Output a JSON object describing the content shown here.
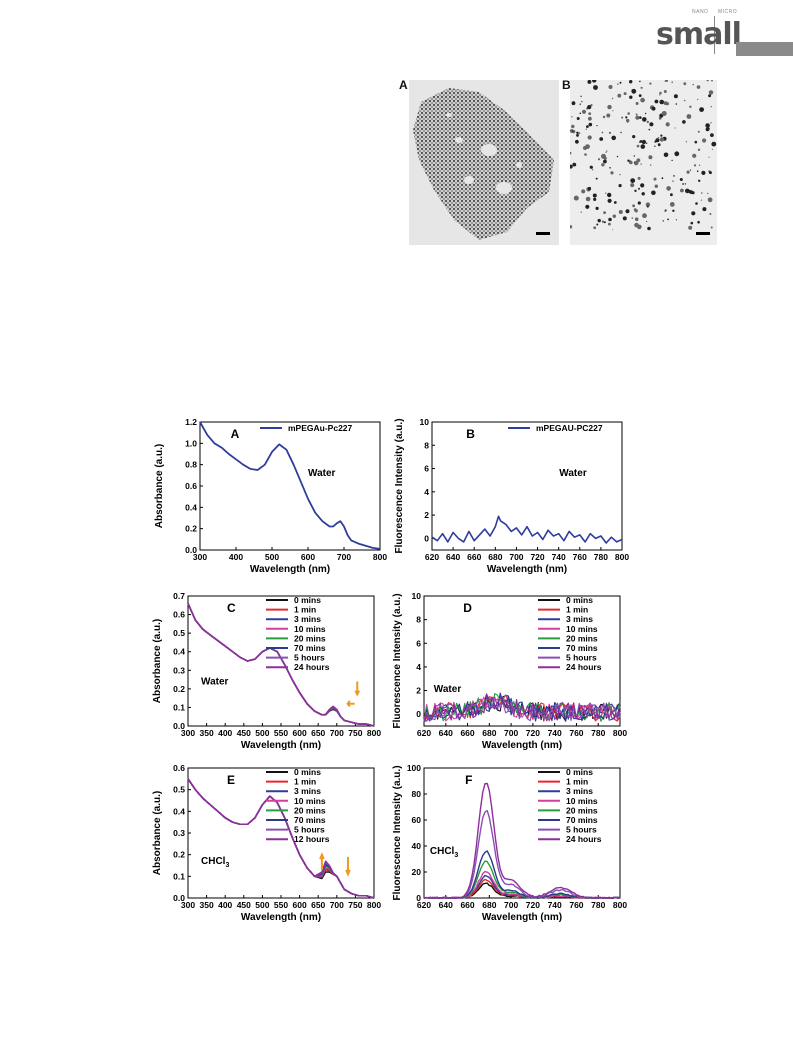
{
  "header": {
    "journal_logo": "small",
    "logo_small_left": "NANO",
    "logo_small_right": "MICRO"
  },
  "tem_figure": {
    "panels": [
      {
        "label": "A"
      },
      {
        "label": "B"
      }
    ]
  },
  "colors": {
    "black": "#111111",
    "red": "#e8262b",
    "blue": "#2f3d9c",
    "magenta": "#d53e9e",
    "green": "#2a9d3c",
    "navy": "#2a3a8c",
    "violet": "#8a4fb6",
    "purple": "#8e2f9a",
    "orange": "#f29a1d"
  },
  "chart_data": [
    {
      "panel": "A",
      "type": "line",
      "xlabel": "Wavelength (nm)",
      "ylabel": "Absorbance (a.u.)",
      "xlim": [
        300,
        800
      ],
      "ylim": [
        0,
        1.2
      ],
      "xticks": [
        "300",
        "400",
        "500",
        "600",
        "700",
        "800"
      ],
      "yticks": [
        "0.0",
        "0.2",
        "0.4",
        "0.6",
        "0.8",
        "1.0",
        "1.2"
      ],
      "annotation": "Water",
      "series": [
        {
          "name": "mPEGAu-Pc227",
          "color": "#2f3d9c",
          "x": [
            300,
            320,
            340,
            360,
            380,
            400,
            420,
            440,
            460,
            480,
            500,
            520,
            540,
            560,
            580,
            600,
            620,
            640,
            660,
            670,
            680,
            690,
            700,
            710,
            720,
            740,
            760,
            780,
            800
          ],
          "y": [
            1.2,
            1.08,
            1.0,
            0.96,
            0.9,
            0.85,
            0.8,
            0.76,
            0.75,
            0.8,
            0.92,
            0.99,
            0.94,
            0.8,
            0.64,
            0.48,
            0.35,
            0.27,
            0.22,
            0.22,
            0.25,
            0.27,
            0.22,
            0.14,
            0.09,
            0.06,
            0.04,
            0.02,
            0.01
          ]
        }
      ]
    },
    {
      "panel": "B",
      "type": "line",
      "xlabel": "Wavelength  (nm)",
      "ylabel": "Fluorescence Intensity (a.u.)",
      "xlim": [
        620,
        800
      ],
      "ylim": [
        -1,
        10
      ],
      "xticks": [
        "620",
        "640",
        "660",
        "680",
        "700",
        "720",
        "740",
        "760",
        "780",
        "800"
      ],
      "yticks": [
        "0",
        "2",
        "4",
        "6",
        "8",
        "10"
      ],
      "annotation": "Water",
      "series": [
        {
          "name": "mPEGAU-PC227",
          "color": "#2f3d9c",
          "x": [
            620,
            625,
            630,
            635,
            640,
            645,
            650,
            655,
            660,
            665,
            670,
            675,
            680,
            683,
            685,
            690,
            695,
            700,
            705,
            710,
            715,
            720,
            725,
            730,
            735,
            740,
            745,
            750,
            755,
            760,
            765,
            770,
            775,
            780,
            785,
            790,
            795,
            800
          ],
          "y": [
            0.1,
            -0.2,
            0.4,
            -0.3,
            0.5,
            0.0,
            -0.3,
            0.6,
            -0.2,
            0.3,
            0.8,
            0.2,
            1.0,
            1.9,
            1.5,
            1.2,
            0.6,
            0.9,
            0.3,
            1.0,
            0.2,
            0.5,
            -0.1,
            0.7,
            0.2,
            0.4,
            -0.2,
            0.6,
            0.1,
            0.3,
            -0.3,
            0.4,
            0.0,
            0.2,
            -0.4,
            0.1,
            -0.3,
            -0.1
          ]
        }
      ]
    },
    {
      "panel": "C",
      "type": "line",
      "xlabel": "Wavelength (nm)",
      "ylabel": "Absorbance (a.u.)",
      "xlim": [
        300,
        800
      ],
      "ylim": [
        0,
        0.7
      ],
      "xticks": [
        "300",
        "350",
        "400",
        "450",
        "500",
        "550",
        "600",
        "650",
        "700",
        "750",
        "800"
      ],
      "yticks": [
        "0.0",
        "0.1",
        "0.2",
        "0.3",
        "0.4",
        "0.5",
        "0.6",
        "0.7"
      ],
      "annotation": "Water",
      "x": [
        300,
        320,
        340,
        360,
        380,
        400,
        420,
        440,
        460,
        480,
        500,
        520,
        540,
        560,
        580,
        600,
        620,
        640,
        660,
        670,
        680,
        690,
        700,
        710,
        720,
        740,
        760,
        780,
        800
      ],
      "base": [
        0.66,
        0.57,
        0.52,
        0.49,
        0.46,
        0.43,
        0.4,
        0.37,
        0.35,
        0.36,
        0.4,
        0.42,
        0.4,
        0.33,
        0.25,
        0.18,
        0.12,
        0.08,
        0.06,
        0.06,
        0.08,
        0.09,
        0.08,
        0.05,
        0.03,
        0.02,
        0.01,
        0.01,
        0.0
      ],
      "series": [
        {
          "name": "0 mins",
          "color": "#111111"
        },
        {
          "name": "1 min",
          "color": "#e8262b"
        },
        {
          "name": "3 mins",
          "color": "#2f3d9c"
        },
        {
          "name": "10 mins",
          "color": "#d53e9e"
        },
        {
          "name": "20 mins",
          "color": "#2a9d3c"
        },
        {
          "name": "70 mins",
          "color": "#2a3a8c"
        },
        {
          "name": "5 hours",
          "color": "#8a4fb6"
        },
        {
          "name": "24 hours",
          "color": "#8e2f9a"
        }
      ]
    },
    {
      "panel": "D",
      "type": "line",
      "xlabel": "Wavelength  (nm)",
      "ylabel": "Fluorescence Intensity (a.u.)",
      "xlim": [
        620,
        800
      ],
      "ylim": [
        -1,
        10
      ],
      "xticks": [
        "620",
        "640",
        "660",
        "680",
        "700",
        "720",
        "740",
        "760",
        "780",
        "800"
      ],
      "yticks": [
        "0",
        "2",
        "4",
        "6",
        "8",
        "10"
      ],
      "annotation": "Water",
      "series": [
        {
          "name": "0 mins",
          "color": "#111111"
        },
        {
          "name": "1 min",
          "color": "#e8262b"
        },
        {
          "name": "3 mins",
          "color": "#2f3d9c"
        },
        {
          "name": "10 mins",
          "color": "#d53e9e"
        },
        {
          "name": "20 mins",
          "color": "#2a9d3c"
        },
        {
          "name": "70 mins",
          "color": "#2a3a8c"
        },
        {
          "name": "5 hours",
          "color": "#8a4fb6"
        },
        {
          "name": "24 hours",
          "color": "#8e2f9a"
        }
      ]
    },
    {
      "panel": "E",
      "type": "line",
      "xlabel": "Wavelength (nm)",
      "ylabel": "Absorbance (a.u.)",
      "xlim": [
        300,
        800
      ],
      "ylim": [
        0,
        0.6
      ],
      "xticks": [
        "300",
        "350",
        "400",
        "450",
        "500",
        "550",
        "600",
        "650",
        "700",
        "750",
        "800"
      ],
      "yticks": [
        "0.0",
        "0.1",
        "0.2",
        "0.3",
        "0.4",
        "0.5",
        "0.6"
      ],
      "annotation": "CHCl",
      "annotation_sub": "3",
      "x": [
        300,
        320,
        340,
        360,
        380,
        400,
        420,
        440,
        460,
        480,
        500,
        520,
        540,
        560,
        580,
        600,
        620,
        640,
        660,
        670,
        680,
        690,
        700,
        710,
        720,
        740,
        760,
        780,
        800
      ],
      "base": [
        0.55,
        0.5,
        0.46,
        0.43,
        0.4,
        0.37,
        0.35,
        0.34,
        0.34,
        0.37,
        0.43,
        0.47,
        0.44,
        0.37,
        0.28,
        0.2,
        0.14,
        0.1,
        0.09,
        0.12,
        0.12,
        0.11,
        0.1,
        0.07,
        0.04,
        0.02,
        0.01,
        0.01,
        0.0
      ],
      "series": [
        {
          "name": "0 mins",
          "color": "#111111"
        },
        {
          "name": "1 min",
          "color": "#e8262b"
        },
        {
          "name": "3 mins",
          "color": "#2f3d9c"
        },
        {
          "name": "10 mins",
          "color": "#d53e9e"
        },
        {
          "name": "20 mins",
          "color": "#2a9d3c"
        },
        {
          "name": "70 mins",
          "color": "#2a3a8c"
        },
        {
          "name": "5 hours",
          "color": "#8a4fb6"
        },
        {
          "name": "12 hours",
          "color": "#8e2f9a"
        }
      ]
    },
    {
      "panel": "F",
      "type": "line",
      "xlabel": "Wavelength (nm)",
      "ylabel": "Fluorescence Intensity (a.u.)",
      "xlim": [
        620,
        800
      ],
      "ylim": [
        0,
        100
      ],
      "xticks": [
        "620",
        "640",
        "660",
        "680",
        "700",
        "720",
        "740",
        "760",
        "780",
        "800"
      ],
      "yticks": [
        "0",
        "20",
        "40",
        "60",
        "80",
        "100"
      ],
      "annotation": "CHCl",
      "annotation_sub": "3",
      "series": [
        {
          "name": "0 mins",
          "color": "#111111",
          "peak": 11
        },
        {
          "name": "1 min",
          "color": "#e8262b",
          "peak": 14
        },
        {
          "name": "3 mins",
          "color": "#2f3d9c",
          "peak": 17
        },
        {
          "name": "10 mins",
          "color": "#d53e9e",
          "peak": 20
        },
        {
          "name": "20 mins",
          "color": "#2a9d3c",
          "peak": 28
        },
        {
          "name": "70 mins",
          "color": "#2a3a8c",
          "peak": 36
        },
        {
          "name": "5 hours",
          "color": "#8a4fb6",
          "peak": 67
        },
        {
          "name": "24 hours",
          "color": "#8e2f9a",
          "peak": 89
        }
      ]
    }
  ]
}
